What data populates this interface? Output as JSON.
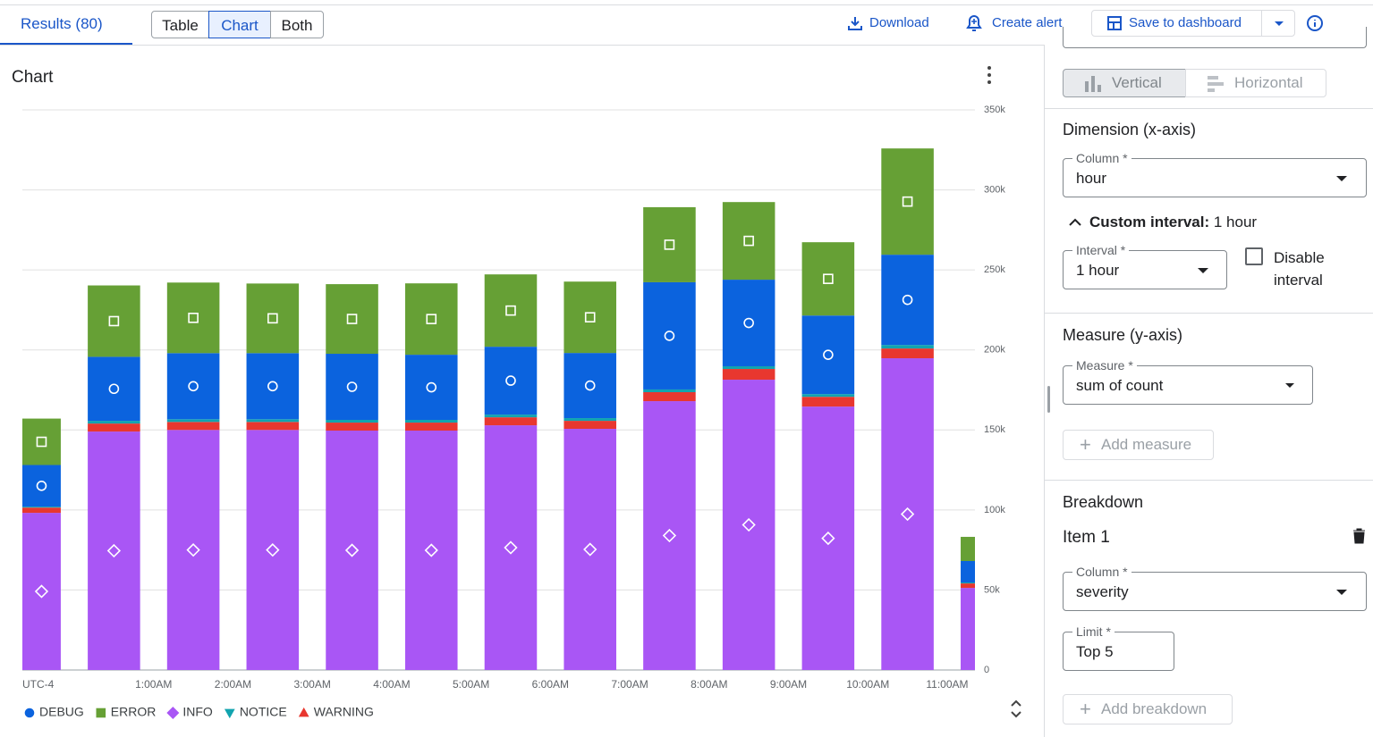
{
  "tabs": {
    "results": "Results (80)",
    "views": [
      "Table",
      "Chart",
      "Both"
    ]
  },
  "toolbar": {
    "download": "Download",
    "create_alert": "Create alert",
    "save": "Save to dashboard"
  },
  "chart_data": {
    "type": "bar",
    "stacked": true,
    "title": "Chart",
    "timezone": "UTC-4",
    "x": [
      -1,
      0,
      1,
      2,
      3,
      4,
      5,
      6,
      7,
      8,
      9,
      10,
      11
    ],
    "xlim": [
      -0.654,
      11.35
    ],
    "xticks": [
      {
        "value": 1,
        "label": "1:00AM"
      },
      {
        "value": 2,
        "label": "2:00AM"
      },
      {
        "value": 3,
        "label": "3:00AM"
      },
      {
        "value": 4,
        "label": "4:00AM"
      },
      {
        "value": 5,
        "label": "5:00AM"
      },
      {
        "value": 6,
        "label": "6:00AM"
      },
      {
        "value": 7,
        "label": "7:00AM"
      },
      {
        "value": 8,
        "label": "8:00AM"
      },
      {
        "value": 9,
        "label": "9:00AM"
      },
      {
        "value": 10,
        "label": "10:00AM"
      },
      {
        "value": 11,
        "label": "11:00AM"
      }
    ],
    "ylim": [
      0,
      350000
    ],
    "yticks": [
      0,
      {
        "value": 50000,
        "label": "50k"
      },
      {
        "value": 100000,
        "label": "100k"
      },
      {
        "value": 150000,
        "label": "150k"
      },
      {
        "value": 200000,
        "label": "200k"
      },
      {
        "value": 250000,
        "label": "250k"
      },
      {
        "value": 300000,
        "label": "300k"
      },
      {
        "value": 350000,
        "label": "350k"
      }
    ],
    "grid": true,
    "legend": "bottom-left",
    "series": [
      {
        "name": "DEBUG",
        "color": "#0b63de",
        "marker": "circle",
        "values": [
          26000,
          40000,
          41300,
          41300,
          41300,
          40700,
          42400,
          40700,
          67000,
          54100,
          49100,
          56400,
          13400
        ]
      },
      {
        "name": "ERROR",
        "color": "#66a035",
        "marker": "square",
        "values": [
          29000,
          44600,
          44100,
          43500,
          43500,
          44600,
          45200,
          44600,
          46900,
          48500,
          45800,
          66400,
          15100
        ]
      },
      {
        "name": "INFO",
        "color": "#a956f5",
        "marker": "diamond",
        "values": [
          98200,
          149000,
          150000,
          150000,
          149600,
          149600,
          152900,
          150700,
          168000,
          181400,
          164600,
          194800,
          51300
        ]
      },
      {
        "name": "NOTICE",
        "color": "#12a4af",
        "marker": "triangle-down",
        "values": [
          600,
          1700,
          1700,
          1700,
          1700,
          1700,
          1700,
          1700,
          1700,
          1700,
          1700,
          2200,
          600
        ]
      },
      {
        "name": "WARNING",
        "color": "#e8372f",
        "marker": "triangle-up",
        "values": [
          3300,
          5000,
          5000,
          5000,
          5000,
          5000,
          5000,
          5000,
          5600,
          6700,
          6100,
          6100,
          2800
        ]
      }
    ]
  },
  "config": {
    "orientation": [
      "Vertical",
      "Horizontal"
    ],
    "dimension": {
      "title": "Dimension (x-axis)",
      "column_label": "Column *",
      "column": "hour",
      "custom_interval_label": "Custom interval:",
      "custom_interval": "1 hour",
      "interval_label": "Interval *",
      "interval": "1 hour",
      "disable_interval": "Disable interval"
    },
    "measure": {
      "title": "Measure (y-axis)",
      "label": "Measure *",
      "value": "sum of count",
      "add": "Add measure"
    },
    "breakdown": {
      "title": "Breakdown",
      "item": "Item 1",
      "column_label": "Column *",
      "column": "severity",
      "limit_label": "Limit *",
      "limit": "Top 5",
      "add": "Add breakdown"
    }
  }
}
